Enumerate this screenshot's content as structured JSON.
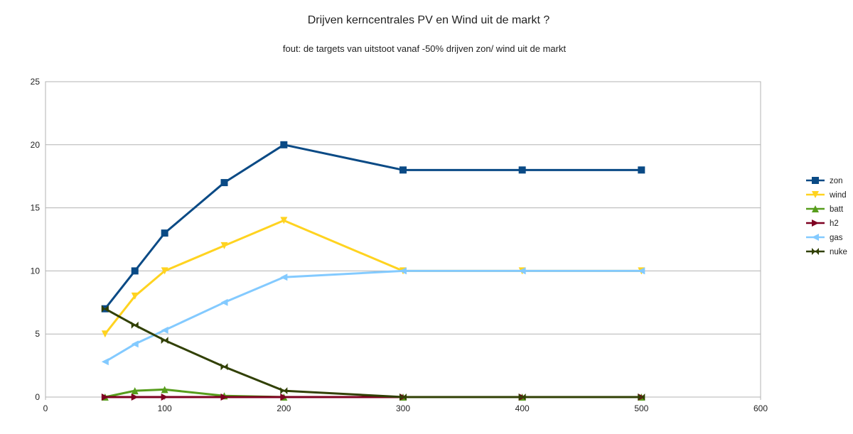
{
  "chart_data": {
    "type": "line",
    "title": "Drijven kerncentrales PV en Wind uit de markt ?",
    "subtitle": "fout: de  targets van uitstoot vanaf -50% drijven zon/ wind uit de markt",
    "xlabel": "",
    "ylabel": "",
    "xlim": [
      0,
      600
    ],
    "ylim": [
      0,
      25
    ],
    "xticks": [
      0,
      100,
      200,
      300,
      400,
      500,
      600
    ],
    "yticks": [
      0,
      5,
      10,
      15,
      20,
      25
    ],
    "grid": "horizontal",
    "legend_position": "right",
    "x": [
      50,
      75,
      100,
      150,
      200,
      300,
      400,
      500
    ],
    "series": [
      {
        "name": "zon",
        "color": "#0a4a85",
        "marker": "square",
        "values": [
          7,
          10,
          13,
          17,
          20,
          18,
          18,
          18
        ]
      },
      {
        "name": "wind",
        "color": "#ffd320",
        "marker": "triangle-down",
        "values": [
          5,
          8,
          10,
          12,
          14,
          10,
          10,
          10
        ]
      },
      {
        "name": "batt",
        "color": "#579d1c",
        "marker": "triangle-up",
        "values": [
          0,
          0.5,
          0.6,
          0.1,
          0,
          0,
          0,
          0
        ]
      },
      {
        "name": "h2",
        "color": "#7e0021",
        "marker": "triangle-right",
        "values": [
          0,
          0,
          0,
          0,
          0,
          0,
          0,
          0
        ]
      },
      {
        "name": "gas",
        "color": "#83caff",
        "marker": "triangle-left",
        "values": [
          2.8,
          4.2,
          5.3,
          7.5,
          9.5,
          10,
          10,
          10
        ]
      },
      {
        "name": "nuke",
        "color": "#314004",
        "marker": "bowtie",
        "values": [
          7,
          5.7,
          4.5,
          2.4,
          0.5,
          0,
          0,
          0
        ]
      }
    ]
  }
}
